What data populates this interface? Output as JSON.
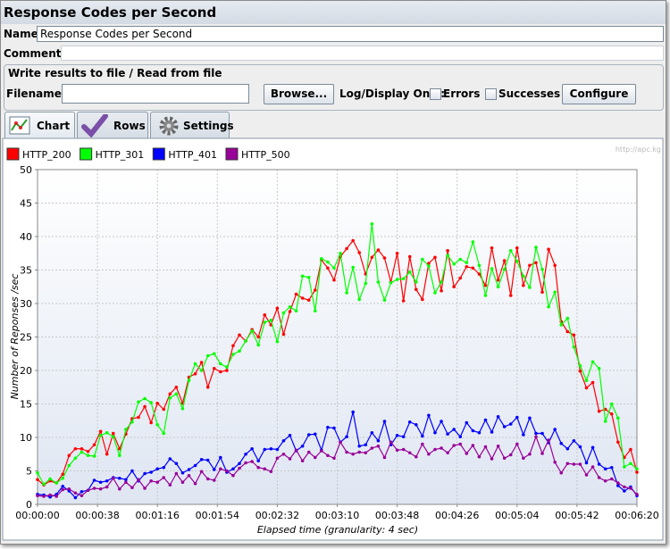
{
  "window": {
    "title": "Response Codes per Second"
  },
  "form": {
    "name_label": "Name:",
    "name_value": "Response Codes per Second",
    "comments_label": "Comments:",
    "section_title": "Write results to file / Read from file",
    "filename_label": "Filename",
    "browse": "Browse...",
    "log_display_only": "Log/Display Only:",
    "errors": "Errors",
    "successes": "Successes",
    "configure": "Configure"
  },
  "tabs": [
    "Chart",
    "Rows",
    "Settings"
  ],
  "watermark": "http://apc.kg",
  "chart_data": {
    "type": "line",
    "y_label": "Number of Reponses /sec",
    "x_label": "Elapsed time (granularity: 4 sec)",
    "grid": true,
    "legend": "top",
    "x": [
      0,
      4,
      8,
      12,
      16,
      20,
      24,
      28,
      32,
      36,
      40,
      44,
      48,
      52,
      56,
      60,
      64,
      68,
      72,
      76,
      80,
      84,
      88,
      92,
      96,
      100,
      104,
      108,
      112,
      116,
      120,
      124,
      128,
      132,
      136,
      140,
      144,
      148,
      152,
      156,
      160,
      164,
      168,
      172,
      176,
      180,
      184,
      188,
      192,
      196,
      200,
      204,
      208,
      212,
      216,
      220,
      224,
      228,
      232,
      236,
      240,
      244,
      248,
      252,
      256,
      260,
      264,
      268,
      272,
      276,
      280,
      284,
      288,
      292,
      296,
      300,
      304,
      308,
      312,
      316,
      320,
      324,
      328,
      332,
      336,
      340,
      344,
      348,
      352,
      356,
      360,
      364,
      368,
      372,
      376,
      380
    ],
    "xlim": [
      0,
      380
    ],
    "xticks": [
      {
        "value": 0,
        "label": "00:00:00"
      },
      {
        "value": 38,
        "label": "00:00:38"
      },
      {
        "value": 76,
        "label": "00:01:16"
      },
      {
        "value": 114,
        "label": "00:01:54"
      },
      {
        "value": 152,
        "label": "00:02:32"
      },
      {
        "value": 190,
        "label": "00:03:10"
      },
      {
        "value": 228,
        "label": "00:03:48"
      },
      {
        "value": 266,
        "label": "00:04:26"
      },
      {
        "value": 304,
        "label": "00:05:04"
      },
      {
        "value": 342,
        "label": "00:05:42"
      },
      {
        "value": 380,
        "label": "00:06:20"
      }
    ],
    "ylim": [
      0,
      50
    ],
    "yticks": [
      0,
      5,
      10,
      15,
      20,
      25,
      30,
      35,
      40,
      45,
      50
    ],
    "series": [
      {
        "name": "HTTP_200",
        "color": "#ff0000",
        "values": [
          3.7,
          2.9,
          3.5,
          3.2,
          4.5,
          7.3,
          8.3,
          8.3,
          7.9,
          8.9,
          10.9,
          7.5,
          10.6,
          8.3,
          10.5,
          12.8,
          13.0,
          14.6,
          12.2,
          15.1,
          14.2,
          16.5,
          17.5,
          15.1,
          19.0,
          19.5,
          21.2,
          17.5,
          20.3,
          19.8,
          20.0,
          23.7,
          25.3,
          24.4,
          26.1,
          25.0,
          28.3,
          26.8,
          29.3,
          25.4,
          28.8,
          31.4,
          30.8,
          30.5,
          32.0,
          36.5,
          35.3,
          33.5,
          37.0,
          38.2,
          39.4,
          37.6,
          34.4,
          36.9,
          38.0,
          36.8,
          33.2,
          37.5,
          30.4,
          37.0,
          32.1,
          30.6,
          36.0,
          36.9,
          31.9,
          37.9,
          32.5,
          33.8,
          35.5,
          35.3,
          34.4,
          32.7,
          38.3,
          33.5,
          36.4,
          31.2,
          38.3,
          32.7,
          35.7,
          36.1,
          31.7,
          38.1,
          35.7,
          27.3,
          25.8,
          25.3,
          19.9,
          17.4,
          18.2,
          13.9,
          14.2,
          13.5,
          9.3,
          7.0,
          8.2,
          4.8
        ]
      },
      {
        "name": "HTTP_301",
        "color": "#00ff00",
        "values": [
          4.7,
          3.0,
          3.8,
          3.2,
          3.9,
          5.8,
          6.9,
          7.8,
          7.3,
          7.2,
          10.3,
          10.7,
          10.1,
          7.3,
          11.2,
          12.3,
          15.3,
          15.8,
          15.2,
          11.9,
          10.6,
          15.9,
          16.5,
          14.3,
          18.5,
          21.0,
          20.0,
          22.2,
          22.5,
          21.0,
          20.5,
          22.4,
          22.9,
          24.4,
          25.9,
          23.8,
          27.2,
          27.5,
          24.3,
          28.6,
          29.5,
          28.9,
          34.1,
          33.9,
          28.9,
          36.7,
          36.2,
          35.3,
          37.5,
          31.6,
          35.4,
          30.6,
          33.0,
          41.9,
          33.2,
          30.5,
          33.1,
          33.6,
          33.7,
          34.7,
          33.2,
          36.6,
          35.6,
          31.6,
          33.2,
          37.2,
          35.9,
          36.6,
          36.1,
          39.2,
          35.7,
          31.2,
          35.2,
          32.5,
          35.1,
          37.9,
          36.3,
          34.1,
          32.4,
          38.4,
          35.1,
          29.5,
          31.7,
          26.8,
          27.8,
          23.5,
          20.7,
          18.5,
          21.3,
          20.3,
          12.4,
          15.0,
          12.9,
          5.6,
          6.1,
          5.3
        ]
      },
      {
        "name": "HTTP_401",
        "color": "#0000ff",
        "values": [
          1.5,
          1.4,
          1.1,
          1.5,
          2.7,
          2.0,
          1.0,
          1.9,
          2.1,
          3.6,
          3.3,
          3.5,
          4.0,
          3.9,
          3.7,
          5.0,
          3.5,
          4.6,
          4.8,
          5.3,
          5.5,
          6.8,
          6.1,
          4.7,
          5.2,
          5.8,
          6.7,
          6.6,
          5.2,
          7.0,
          4.8,
          5.3,
          6.1,
          7.5,
          8.3,
          6.5,
          8.2,
          8.3,
          8.2,
          9.5,
          10.3,
          8.0,
          8.7,
          10.4,
          10.5,
          8.1,
          11.5,
          11.4,
          9.3,
          10.1,
          13.8,
          8.7,
          8.9,
          10.7,
          9.5,
          12.4,
          8.9,
          10.3,
          10.1,
          12.3,
          11.9,
          10.2,
          13.3,
          10.7,
          12.4,
          10.5,
          11.2,
          10.1,
          12.2,
          11.0,
          10.7,
          12.6,
          10.8,
          13.1,
          11.6,
          12.0,
          13.0,
          10.4,
          12.9,
          10.6,
          10.6,
          9.2,
          11.2,
          9.1,
          8.3,
          9.5,
          8.6,
          6.2,
          8.5,
          6.0,
          5.3,
          5.5,
          2.8,
          2.0,
          2.6,
          1.3
        ]
      },
      {
        "name": "HTTP_500",
        "color": "#990099",
        "values": [
          1.3,
          1.2,
          1.4,
          1.2,
          2.2,
          2.3,
          1.7,
          1.3,
          2.1,
          2.4,
          2.3,
          2.6,
          3.9,
          2.3,
          3.3,
          2.5,
          3.7,
          2.4,
          3.5,
          3.3,
          4.0,
          2.9,
          4.6,
          3.3,
          4.3,
          3.1,
          4.9,
          3.8,
          3.6,
          5.3,
          5.0,
          4.3,
          5.4,
          6.2,
          6.4,
          5.5,
          5.3,
          4.9,
          6.9,
          7.5,
          6.8,
          8.1,
          6.5,
          7.8,
          7.0,
          8.0,
          7.3,
          6.9,
          9.3,
          7.8,
          7.5,
          7.8,
          7.7,
          8.4,
          8.7,
          7.0,
          9.3,
          8.1,
          8.2,
          7.7,
          7.1,
          9.0,
          7.5,
          8.2,
          8.4,
          7.7,
          8.8,
          9.0,
          7.6,
          8.8,
          7.1,
          8.6,
          6.8,
          8.7,
          6.9,
          7.4,
          9.0,
          6.9,
          7.5,
          10.1,
          7.6,
          9.6,
          6.3,
          4.7,
          6.1,
          6.0,
          6.0,
          4.4,
          5.6,
          4.0,
          3.5,
          3.8,
          3.2,
          2.6,
          2.4,
          1.5
        ]
      }
    ]
  }
}
